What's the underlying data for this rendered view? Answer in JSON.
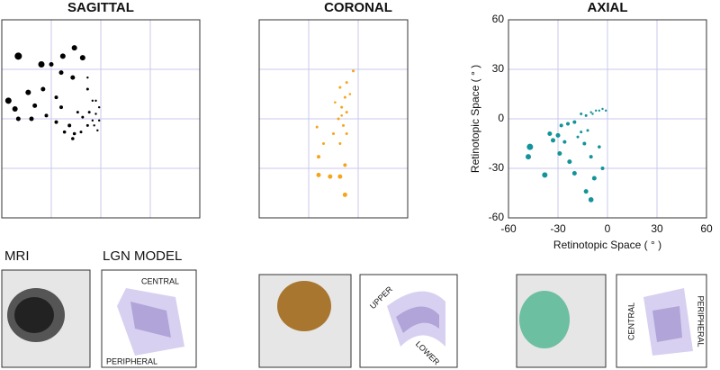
{
  "chart_data": [
    {
      "type": "scatter",
      "title": "SAGITTAL",
      "color": "#000000",
      "tick_labels": false,
      "grid": true,
      "xlim": [
        -60,
        60
      ],
      "ylim": [
        -60,
        60
      ],
      "xticks": [
        -30,
        0,
        30
      ],
      "yticks": [
        -30,
        0,
        30
      ],
      "x": [
        -50,
        -36,
        -44,
        -56,
        -52,
        -40,
        -23,
        -16,
        -11,
        -17,
        -24,
        -30,
        -35,
        -27,
        -50,
        -42,
        -33,
        -27,
        -24,
        -19,
        -16,
        -22,
        -12,
        -8,
        -7,
        -8,
        -5,
        -3,
        -1,
        -3,
        -1,
        -4,
        -2,
        -5,
        -11,
        -14,
        -8,
        -17
      ],
      "y": [
        38,
        33,
        16,
        11,
        6,
        8,
        38,
        43,
        37,
        25,
        28,
        33,
        18,
        13,
        0,
        0,
        2,
        -2,
        7,
        -4,
        -9,
        -8,
        -8,
        -4,
        4,
        18,
        11,
        11,
        7,
        3,
        -1,
        -4,
        -7,
        -1,
        1,
        4,
        25,
        -12
      ],
      "sizes": [
        4,
        3.5,
        3,
        3.5,
        3,
        2.5,
        3,
        3,
        3,
        2.5,
        2.5,
        2.5,
        2.5,
        2,
        2.5,
        2.5,
        2,
        2,
        2,
        2,
        1.8,
        1.8,
        1.5,
        1.5,
        1.5,
        1.5,
        1.2,
        1.2,
        1.2,
        1.2,
        1.2,
        1.2,
        1.2,
        1.2,
        1.5,
        1.5,
        1.2,
        1.8
      ]
    },
    {
      "type": "scatter",
      "title": "CORONAL",
      "color": "#f5a51c",
      "tick_labels": false,
      "grid": true,
      "xlim": [
        -60,
        30
      ],
      "ylim": [
        -60,
        60
      ],
      "xticks": [
        -30,
        0
      ],
      "yticks": [
        -30,
        0,
        30
      ],
      "x": [
        -3,
        -7,
        -11,
        -8,
        -10,
        -7,
        -12,
        -9,
        -15,
        -7,
        -11,
        -25,
        -21,
        -24,
        -8,
        -24,
        -17,
        -11,
        -8,
        -5,
        -10,
        -14
      ],
      "y": [
        29,
        22,
        19,
        13,
        7,
        4,
        0,
        -4,
        -9,
        -9,
        -15,
        -5,
        -15,
        -23,
        -28,
        -34,
        -35,
        -35,
        -46,
        15,
        2,
        10
      ],
      "sizes": [
        1.5,
        1.5,
        1.5,
        1.5,
        1.5,
        1.5,
        1.5,
        1.5,
        1.5,
        1.5,
        1.5,
        1.5,
        1.5,
        2,
        2,
        2.5,
        2.5,
        2.5,
        2.5,
        1.3,
        1.3,
        1.3
      ]
    },
    {
      "type": "scatter",
      "title": "AXIAL",
      "color": "#13939a",
      "tick_labels": true,
      "grid": true,
      "xlabel": "Retinotopic Space ( ° )",
      "ylabel": "Retinotopic Space ( ° )",
      "xlim": [
        -60,
        60
      ],
      "ylim": [
        -60,
        60
      ],
      "xticks": [
        -60,
        -30,
        0,
        30,
        60
      ],
      "yticks": [
        -60,
        -30,
        0,
        30,
        60
      ],
      "x": [
        -47,
        -48,
        -38,
        -35,
        -33,
        -30,
        -29,
        -28,
        -24,
        -20,
        -23,
        -20,
        -13,
        -10,
        -8,
        -3,
        -10,
        -14,
        -5,
        -16,
        -12,
        -13,
        -16,
        -10,
        -7,
        -5,
        -3,
        -1,
        -9,
        -18,
        -26
      ],
      "y": [
        -17,
        -23,
        -34,
        -9,
        -13,
        -10,
        -21,
        -4,
        -3,
        -2,
        -26,
        -33,
        -44,
        -49,
        -36,
        -30,
        -23,
        -15,
        -17,
        -8,
        -7,
        2,
        3,
        4,
        5,
        5,
        6,
        5,
        3,
        -11,
        -14
      ],
      "sizes": [
        3.5,
        3,
        3,
        2.5,
        2.5,
        2.5,
        2.5,
        2,
        2,
        2,
        2.5,
        2.5,
        2.5,
        2.8,
        2.5,
        2,
        2,
        2,
        1.8,
        1.5,
        1.5,
        1.5,
        1.5,
        1.2,
        1.2,
        1.2,
        1.2,
        1.2,
        1.2,
        1.5,
        2
      ]
    }
  ],
  "thumbnails": {
    "headers": [
      "MRI",
      "LGN MODEL"
    ],
    "labels": [
      "CENTRAL",
      "PERIPHERAL",
      "UPPER",
      "LOWER",
      "CENTRAL",
      "PERIPHERAL"
    ]
  }
}
